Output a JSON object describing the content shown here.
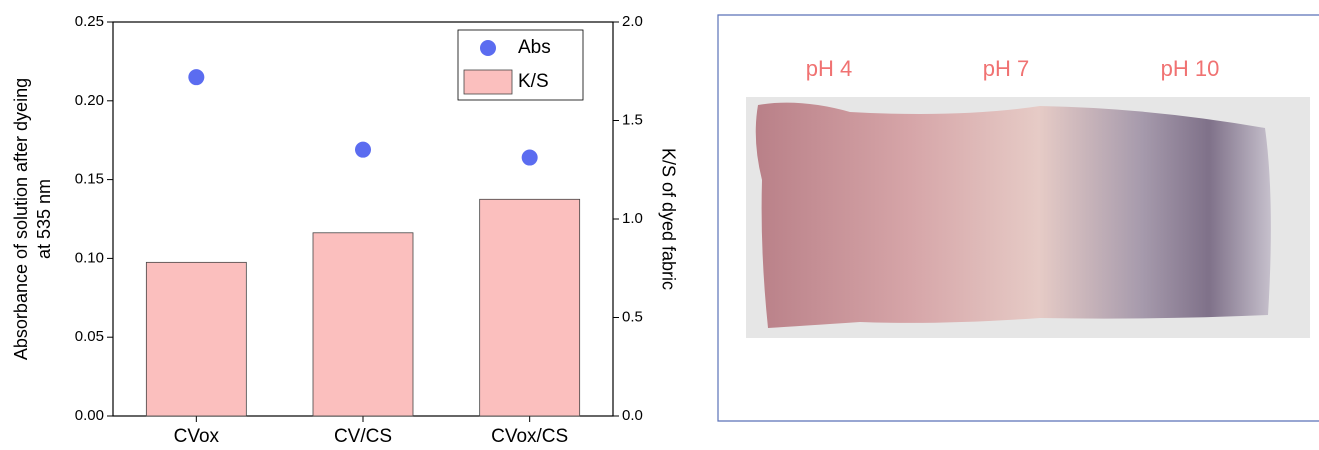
{
  "chart_data": {
    "type": "bar",
    "categories": [
      "CVox",
      "CV/CS",
      "CVox/CS"
    ],
    "ylabel": [
      "Absorbance of solution after dyeing",
      "at 535 nm"
    ],
    "y2label": "K/S of dyed fabric",
    "series": [
      {
        "name": "Abs",
        "type": "scatter",
        "color": "#5b6cf0",
        "values": [
          0.215,
          0.169,
          0.164
        ]
      },
      {
        "name": "K/S",
        "type": "bar",
        "color": "#fbbfbe",
        "axis": "y2",
        "values": [
          0.78,
          0.93,
          1.1
        ]
      }
    ],
    "ylim": [
      0,
      0.25
    ],
    "yticks": [
      {
        "value": 0,
        "label": "0.00"
      },
      {
        "value": 0.05,
        "label": "0.05"
      },
      {
        "value": 0.1,
        "label": "0.10"
      },
      {
        "value": 0.15,
        "label": "0.15"
      },
      {
        "value": 0.2,
        "label": "0.20"
      },
      {
        "value": 0.25,
        "label": "0.25"
      }
    ],
    "y2lim": [
      0,
      2
    ],
    "y2ticks": [
      {
        "value": 0,
        "label": "0.0"
      },
      0.5,
      {
        "value": 1,
        "label": "1.0"
      },
      1.5,
      {
        "value": 2,
        "label": "2.0"
      }
    ],
    "legend": "upper right"
  },
  "photo": {
    "labels": [
      "pH 4",
      "pH 7",
      "pH 10"
    ]
  }
}
